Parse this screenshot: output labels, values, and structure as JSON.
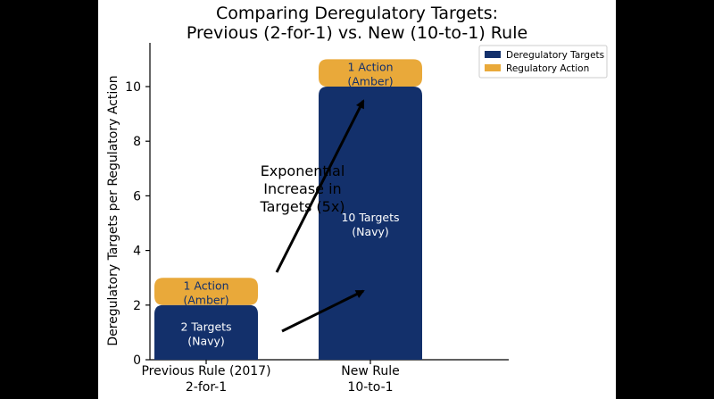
{
  "chart_data": {
    "type": "bar",
    "title_line1": "Comparing Deregulatory Targets:",
    "title_line2": "Previous (2-for-1) vs. New (10-to-1) Rule",
    "ylabel": "Deregulatory Targets per Regulatory Action",
    "xlabel": "",
    "ylim": [
      0,
      11.6
    ],
    "yticks": [
      0,
      2,
      4,
      6,
      8,
      10
    ],
    "grid": false,
    "legend_position": "top-right",
    "categories": [
      {
        "line1": "Previous Rule (2017)",
        "line2": "2-for-1"
      },
      {
        "line1": "New Rule",
        "line2": "10-to-1"
      }
    ],
    "series": [
      {
        "name": "Deregulatory Targets",
        "color": "#13306b",
        "values": [
          2,
          10
        ],
        "labels": [
          {
            "line1": "2 Targets",
            "line2": "(Navy)"
          },
          {
            "line1": "10 Targets",
            "line2": "(Navy)"
          }
        ]
      },
      {
        "name": "Regulatory Action",
        "color": "#e9a93a",
        "values": [
          1,
          1
        ],
        "labels": [
          {
            "line1": "1 Action",
            "line2": "(Amber)"
          },
          {
            "line1": "1 Action",
            "line2": "(Amber)"
          }
        ]
      }
    ],
    "annotation": {
      "line1": "Exponential",
      "line2": "Increase in",
      "line3": "Targets (5x)"
    }
  }
}
